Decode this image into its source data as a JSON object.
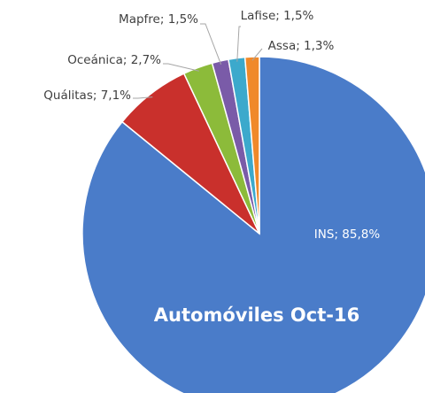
{
  "chart_data": {
    "type": "pie",
    "title": "Automóviles Oct-16",
    "values": [
      85.8,
      7.1,
      2.7,
      1.5,
      1.5,
      1.3
    ],
    "value_labels": [
      "INS; 85,8%",
      "Quálitas; 7,1%",
      "Oceánica; 2,7%",
      "Mapfre; 1,5%",
      "Lafise; 1,5%",
      "Assa; 1,3%"
    ],
    "colors": [
      "#4a7cc9",
      "#c9302c",
      "#8cbb3a",
      "#7a5ba8",
      "#3ca9cc",
      "#f0892a"
    ]
  }
}
